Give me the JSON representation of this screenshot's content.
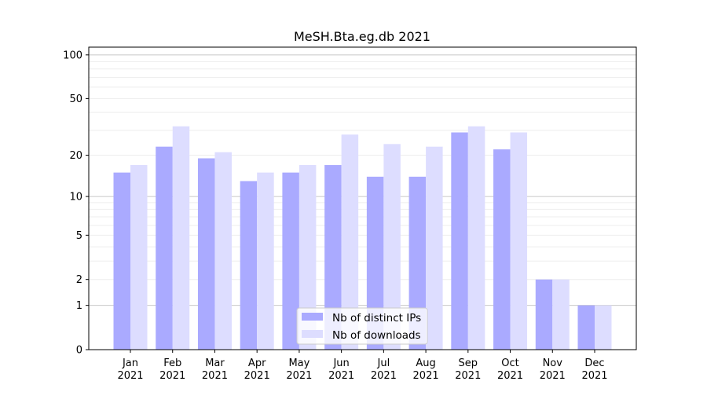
{
  "chart_data": {
    "type": "bar",
    "title": "MeSH.Bta.eg.db 2021",
    "xlabel": "",
    "ylabel": "",
    "yscale": "log(1+x)",
    "ylim": [
      0,
      113
    ],
    "yticks": [
      0,
      1,
      2,
      5,
      10,
      20,
      50,
      100
    ],
    "grid": true,
    "legend_position": "bottom-center",
    "categories": [
      "Jan\n2021",
      "Feb\n2021",
      "Mar\n2021",
      "Apr\n2021",
      "May\n2021",
      "Jun\n2021",
      "Jul\n2021",
      "Aug\n2021",
      "Sep\n2021",
      "Oct\n2021",
      "Nov\n2021",
      "Dec\n2021"
    ],
    "series": [
      {
        "name": "Nb of distinct IPs",
        "color": "#aaaaff",
        "values": [
          15,
          23,
          19,
          13,
          15,
          17,
          14,
          14,
          29,
          22,
          2,
          1
        ]
      },
      {
        "name": "Nb of downloads",
        "color": "#ddddff",
        "values": [
          17,
          32,
          21,
          15,
          17,
          28,
          24,
          23,
          32,
          29,
          2,
          1
        ]
      }
    ]
  }
}
